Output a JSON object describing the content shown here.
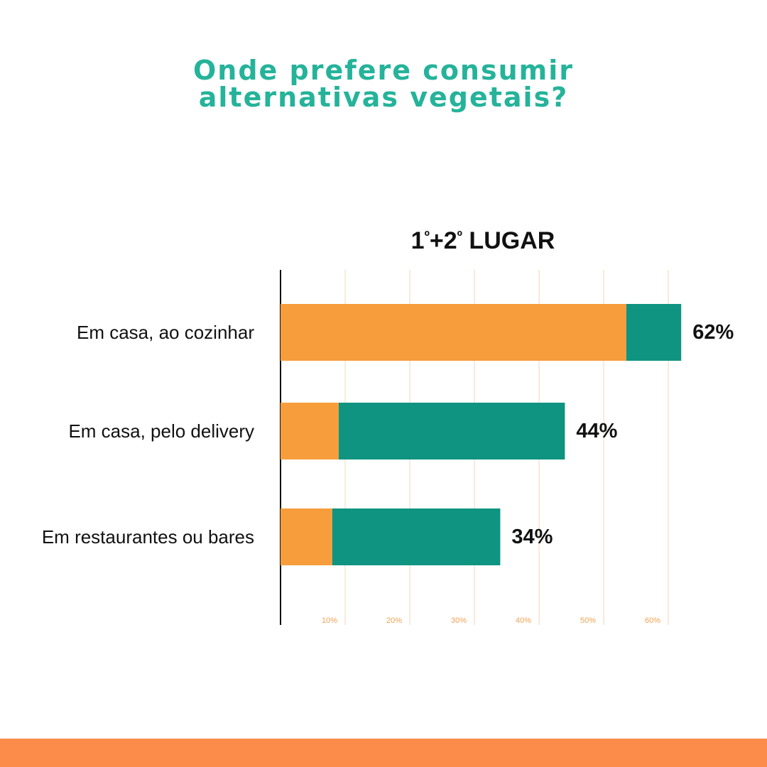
{
  "page": {
    "title_line_1": "Onde prefere consumir",
    "title_line_2": "alternativas vegetais?"
  },
  "colors": {
    "title": "#25b39a",
    "series_orange": "#f79d3b",
    "series_teal": "#0e9480",
    "gridline": "#f7e3cf",
    "tick_label": "#f4a050",
    "footer": "#fb8c4a"
  },
  "chart_data": {
    "type": "bar",
    "orientation": "horizontal",
    "stacked": true,
    "title": "1º+2º LUGAR",
    "categories": [
      "Em casa, ao cozinhar",
      "Em casa, pelo delivery",
      "Em restaurantes ou bares"
    ],
    "series": [
      {
        "values": [
          53.5,
          9,
          8
        ]
      },
      {
        "values": [
          8.5,
          35,
          26
        ]
      }
    ],
    "totals": [
      62,
      44,
      34
    ],
    "total_labels": [
      "62%",
      "44%",
      "34%"
    ],
    "xlim": [
      0,
      66
    ],
    "x_ticks": [
      10,
      20,
      30,
      40,
      50,
      60
    ],
    "x_tick_labels": [
      "10%",
      "20%",
      "30%",
      "40%",
      "50%",
      "60%"
    ],
    "grid": true,
    "legend": "none"
  }
}
